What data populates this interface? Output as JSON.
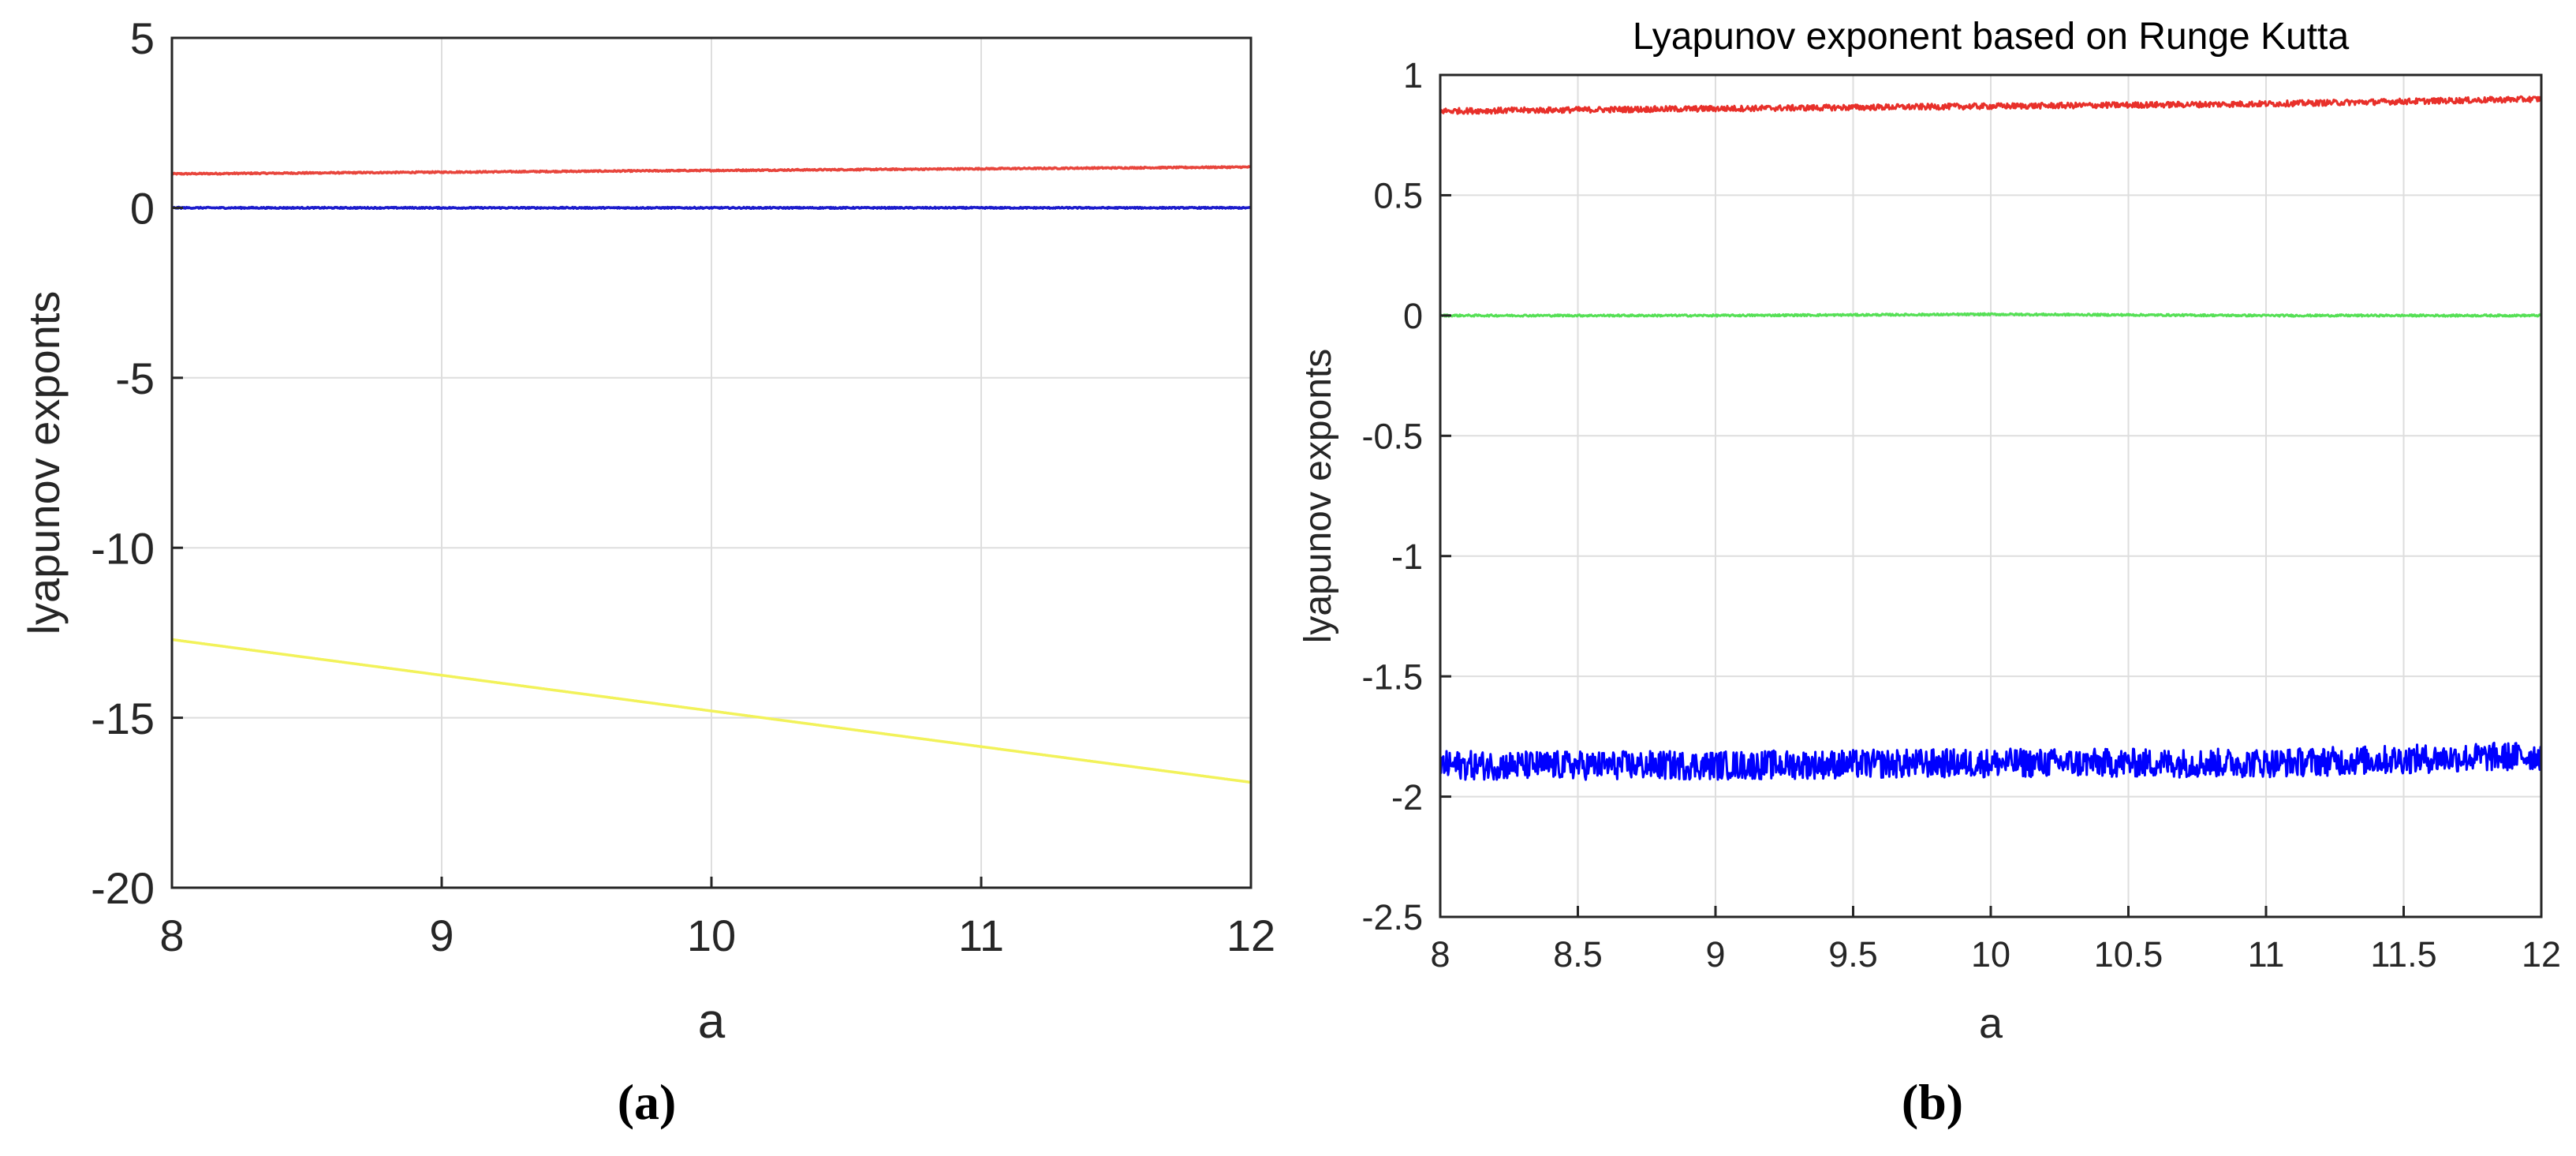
{
  "chart_data": [
    {
      "type": "line",
      "panel_label": "(a)",
      "title": "",
      "xlabel": "a",
      "ylabel": "lyapunov exponts",
      "xlim": [
        8,
        12
      ],
      "ylim": [
        -20,
        5
      ],
      "xticks": [
        8,
        9,
        10,
        11,
        12
      ],
      "yticks": [
        5,
        0,
        -5,
        -10,
        -15,
        -20
      ],
      "xtick_labels": [
        "8",
        "9",
        "10",
        "11",
        "12"
      ],
      "ytick_labels": [
        "5",
        "0",
        "-5",
        "-10",
        "-15",
        "-20"
      ],
      "grid": true,
      "series": [
        {
          "color": "#e8453c",
          "x": [
            8,
            9,
            10,
            11,
            12
          ],
          "values": [
            1.0,
            1.05,
            1.1,
            1.15,
            1.2
          ],
          "noise": 0.02
        },
        {
          "color": "#1c1ccc",
          "x": [
            8,
            9,
            10,
            11,
            12
          ],
          "values": [
            0,
            0,
            0,
            0,
            0
          ],
          "noise": 0.02
        },
        {
          "color": "#f2f25a",
          "x": [
            8,
            9,
            10,
            11,
            12
          ],
          "values": [
            -12.7,
            -13.75,
            -14.8,
            -15.85,
            -16.9
          ],
          "noise": 0
        }
      ]
    },
    {
      "type": "line",
      "panel_label": "(b)",
      "title": "Lyapunov exponent based on Runge Kutta",
      "xlabel": "a",
      "ylabel": "lyapunov exponts",
      "xlim": [
        8,
        12
      ],
      "ylim": [
        -2.5,
        1
      ],
      "xticks": [
        8,
        8.5,
        9,
        9.5,
        10,
        10.5,
        11,
        11.5,
        12
      ],
      "yticks": [
        1,
        0.5,
        0,
        -0.5,
        -1,
        -1.5,
        -2,
        -2.5
      ],
      "xtick_labels": [
        "8",
        "8.5",
        "9",
        "9.5",
        "10",
        "10.5",
        "11",
        "11.5",
        "12"
      ],
      "ytick_labels": [
        "1",
        "0.5",
        "0",
        "-0.5",
        "-1",
        "-1.5",
        "-2",
        "-2.5"
      ],
      "grid": true,
      "series": [
        {
          "color": "#e8302a",
          "x": [
            8,
            9,
            10,
            11,
            12
          ],
          "values": [
            0.85,
            0.86,
            0.87,
            0.88,
            0.9
          ],
          "noise": 0.012
        },
        {
          "color": "#55e055",
          "x": [
            8,
            9,
            10,
            11,
            12
          ],
          "values": [
            0,
            0,
            0.005,
            0,
            0
          ],
          "noise": 0.004
        },
        {
          "color": "#0000ff",
          "x": [
            8,
            9,
            10,
            11,
            12
          ],
          "values": [
            -1.87,
            -1.87,
            -1.86,
            -1.86,
            -1.83
          ],
          "noise": 0.06
        }
      ]
    }
  ]
}
